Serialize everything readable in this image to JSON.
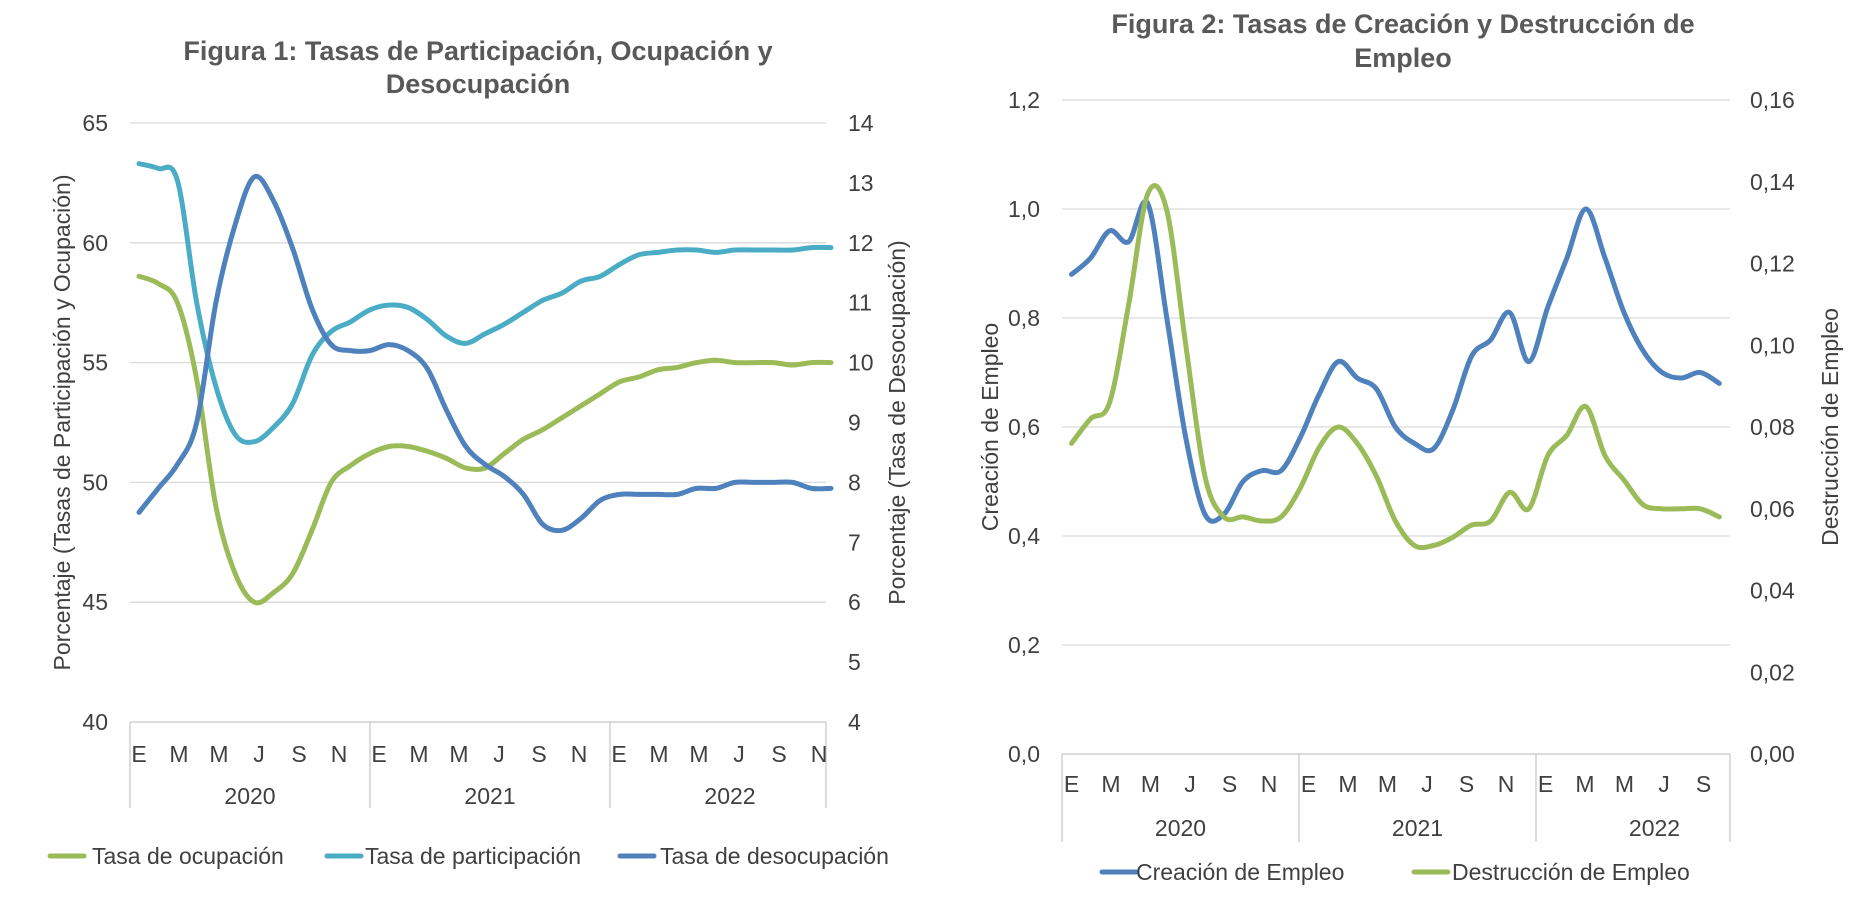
{
  "chart_data": [
    {
      "type": "line",
      "title_lines": [
        "Figura 1: Tasas de Participación, Ocupación y",
        "Desocupación"
      ],
      "ylabel": "Porcentaje (Tasas de Participación y Ocupación)",
      "ylabel_right": "Porcentaje (Tasa de Desocupación)",
      "ylim": [
        40,
        65
      ],
      "ylim_right": [
        4,
        14
      ],
      "yticks": [
        "40",
        "45",
        "50",
        "55",
        "60",
        "65"
      ],
      "yticks_right": [
        "4",
        "5",
        "6",
        "7",
        "8",
        "9",
        "10",
        "11",
        "12",
        "13",
        "14"
      ],
      "month_labels": [
        "E",
        "M",
        "M",
        "J",
        "S",
        "N",
        "E",
        "M",
        "M",
        "J",
        "S",
        "N",
        "E",
        "M",
        "M",
        "J",
        "S",
        "N"
      ],
      "years": [
        "2020",
        "2021",
        "2022"
      ],
      "grid": true,
      "legend_position": "bottom",
      "series": [
        {
          "name": "Tasa de ocupación",
          "color": "#9bbb59",
          "axis": "left",
          "values": [
            58.6,
            58.3,
            57.5,
            54.3,
            49.0,
            46.2,
            45.0,
            45.4,
            46.2,
            48.0,
            50.0,
            50.7,
            51.2,
            51.5,
            51.5,
            51.3,
            51.0,
            50.6,
            50.6,
            51.2,
            51.8,
            52.2,
            52.7,
            53.2,
            53.7,
            54.2,
            54.4,
            54.7,
            54.8,
            55.0,
            55.1,
            55.0,
            55.0,
            55.0,
            54.9,
            55.0,
            55.0
          ]
        },
        {
          "name": "Tasa de participación",
          "color": "#4bacc6",
          "axis": "left",
          "values": [
            63.3,
            63.1,
            62.6,
            57.5,
            54.0,
            52.0,
            51.7,
            52.3,
            53.3,
            55.3,
            56.3,
            56.7,
            57.2,
            57.4,
            57.3,
            56.8,
            56.1,
            55.8,
            56.2,
            56.6,
            57.1,
            57.6,
            57.9,
            58.4,
            58.6,
            59.1,
            59.5,
            59.6,
            59.7,
            59.7,
            59.6,
            59.7,
            59.7,
            59.7,
            59.7,
            59.8,
            59.8
          ]
        },
        {
          "name": "Tasa de desocupación",
          "color": "#4f81bd",
          "axis": "right",
          "values": [
            7.5,
            7.9,
            8.3,
            9.0,
            11.0,
            12.3,
            13.1,
            12.7,
            11.9,
            10.9,
            10.3,
            10.2,
            10.2,
            10.3,
            10.2,
            9.9,
            9.2,
            8.6,
            8.3,
            8.1,
            7.8,
            7.3,
            7.2,
            7.4,
            7.7,
            7.8,
            7.8,
            7.8,
            7.8,
            7.9,
            7.9,
            8.0,
            8.0,
            8.0,
            8.0,
            7.9,
            7.9
          ]
        }
      ]
    },
    {
      "type": "line",
      "title_lines": [
        "Figura 2: Tasas de Creación y Destrucción de",
        "Empleo"
      ],
      "ylabel": "Creación de Empleo",
      "ylabel_right": "Destrucción de Empleo",
      "ylim": [
        0,
        1.2
      ],
      "ylim_right": [
        0,
        0.16
      ],
      "yticks": [
        "0,0",
        "0,2",
        "0,4",
        "0,6",
        "0,8",
        "1,0",
        "1,2"
      ],
      "yticks_right": [
        "0,00",
        "0,02",
        "0,04",
        "0,06",
        "0,08",
        "0,10",
        "0,12",
        "0,14",
        "0,16"
      ],
      "month_labels": [
        "E",
        "M",
        "M",
        "J",
        "S",
        "N",
        "E",
        "M",
        "M",
        "J",
        "S",
        "N",
        "E",
        "M",
        "M",
        "J",
        "S"
      ],
      "years": [
        "2020",
        "2021",
        "2022"
      ],
      "grid": true,
      "legend_position": "bottom",
      "series": [
        {
          "name": "Creación de Empleo",
          "color": "#4f81bd",
          "axis": "left",
          "values": [
            0.88,
            0.91,
            0.96,
            0.94,
            1.01,
            0.8,
            0.58,
            0.44,
            0.44,
            0.5,
            0.52,
            0.52,
            0.58,
            0.66,
            0.72,
            0.69,
            0.67,
            0.6,
            0.57,
            0.56,
            0.63,
            0.73,
            0.76,
            0.81,
            0.72,
            0.82,
            0.91,
            1.0,
            0.91,
            0.81,
            0.74,
            0.7,
            0.69,
            0.7,
            0.68
          ]
        },
        {
          "name": "Destrucción de Empleo",
          "color": "#9bbb59",
          "axis": "right",
          "values": [
            0.076,
            0.082,
            0.086,
            0.11,
            0.137,
            0.133,
            0.1,
            0.068,
            0.058,
            0.058,
            0.057,
            0.058,
            0.065,
            0.075,
            0.08,
            0.076,
            0.068,
            0.057,
            0.051,
            0.051,
            0.053,
            0.056,
            0.057,
            0.064,
            0.06,
            0.073,
            0.078,
            0.085,
            0.073,
            0.067,
            0.061,
            0.06,
            0.06,
            0.06,
            0.058
          ]
        }
      ]
    }
  ]
}
